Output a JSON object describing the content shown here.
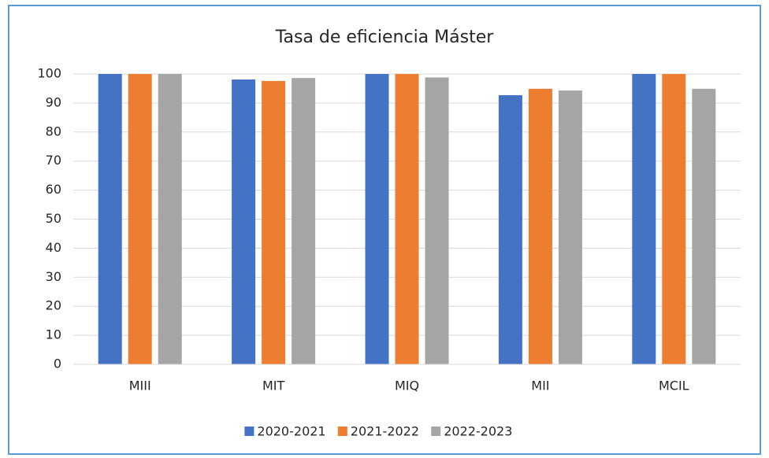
{
  "chart_data": {
    "type": "bar",
    "title": "Tasa de eficiencia Máster",
    "categories": [
      "MIII",
      "MIT",
      "MIQ",
      "MII",
      "MCIL"
    ],
    "series": [
      {
        "name": "2020-2021",
        "color": "#4472c4",
        "values": [
          100,
          98.1,
          100,
          92.7,
          100
        ]
      },
      {
        "name": "2021-2022",
        "color": "#ed7d31",
        "values": [
          100,
          97.6,
          100,
          94.9,
          100
        ]
      },
      {
        "name": "2022-2023",
        "color": "#a5a5a5",
        "values": [
          100,
          98.6,
          98.8,
          94.3,
          94.9
        ]
      }
    ],
    "ylim": [
      0,
      100
    ],
    "yticks": [
      0,
      10,
      20,
      30,
      40,
      50,
      60,
      70,
      80,
      90,
      100
    ],
    "grid": true,
    "legend": "bottom"
  }
}
